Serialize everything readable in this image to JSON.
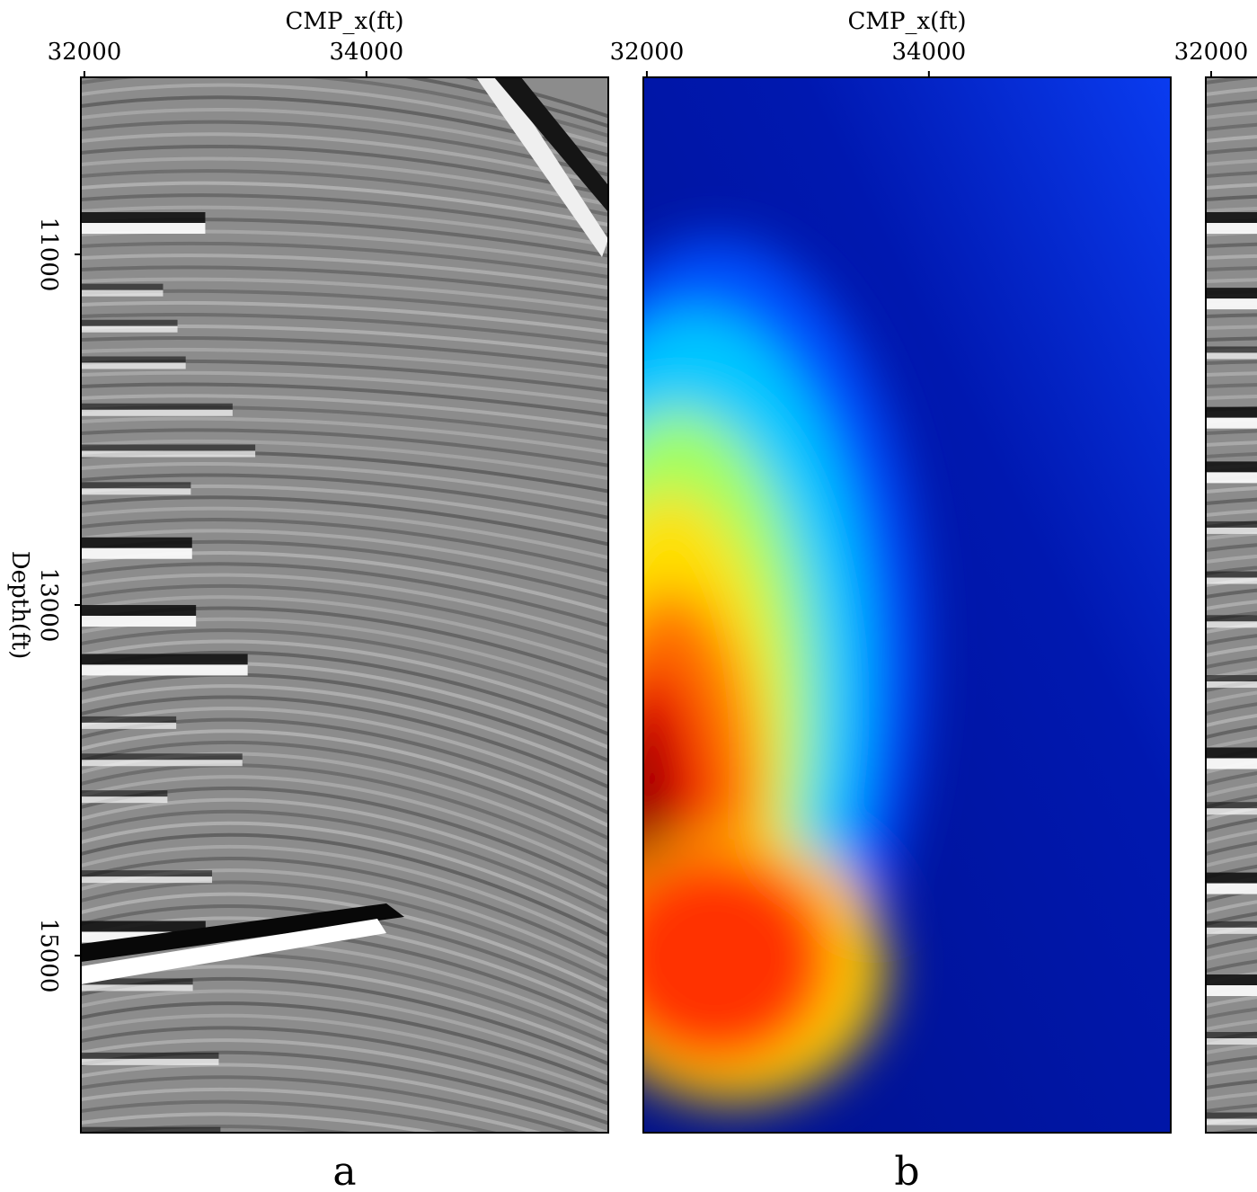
{
  "chart_data": [
    {
      "type": "image",
      "colormap": "gray",
      "panel_label": "a",
      "xlabel": "CMP_x(ft)",
      "xlim": [
        31975,
        35715
      ],
      "xticks": [
        32000,
        34000
      ],
      "ylabel": "Depth(ft)",
      "ylim": [
        16010,
        9990
      ],
      "yticks": [
        11000,
        13000,
        15000
      ]
    },
    {
      "type": "image",
      "colormap": "jet",
      "panel_label": "b",
      "xlabel": "CMP_x(ft)",
      "xlim": [
        31975,
        35715
      ],
      "xticks": [
        32000,
        34000
      ],
      "ylim": [
        16010,
        9990
      ]
    },
    {
      "type": "image",
      "colormap": "gray",
      "xlim": [
        31962,
        35700
      ],
      "xticks": [
        32000
      ],
      "ylim": [
        16010,
        9990
      ]
    }
  ]
}
